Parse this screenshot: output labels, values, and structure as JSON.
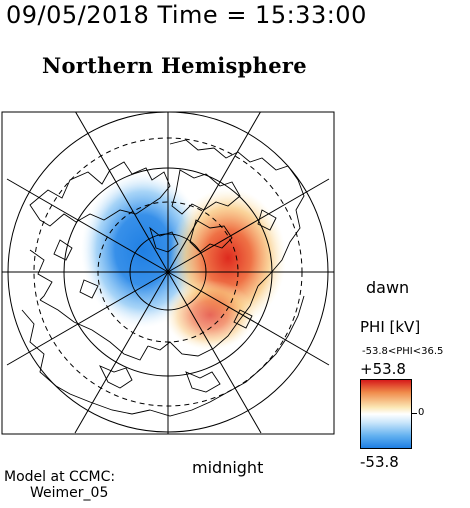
{
  "header": {
    "timestamp": "09/05/2018 Time = 15:33:00",
    "hemisphere_title": "Northern Hemisphere"
  },
  "map": {
    "orientation_labels": {
      "right": "dawn",
      "bottom": "midnight"
    },
    "grid": "solid and dashed circles",
    "projection": "polar",
    "field_colors": {
      "negative": "#1f7fe3",
      "positive": "#d61a1a",
      "neutral": "#ffffff",
      "coastline": "#000000"
    }
  },
  "legend": {
    "title": "PHI [kV]",
    "range_text": "-53.8<PHI<36.5",
    "max_label": "+53.8",
    "min_label": "-53.8",
    "zero_label": "0"
  },
  "credit": {
    "line1": "Model at CCMC:",
    "line2": "Weimer_05"
  }
}
